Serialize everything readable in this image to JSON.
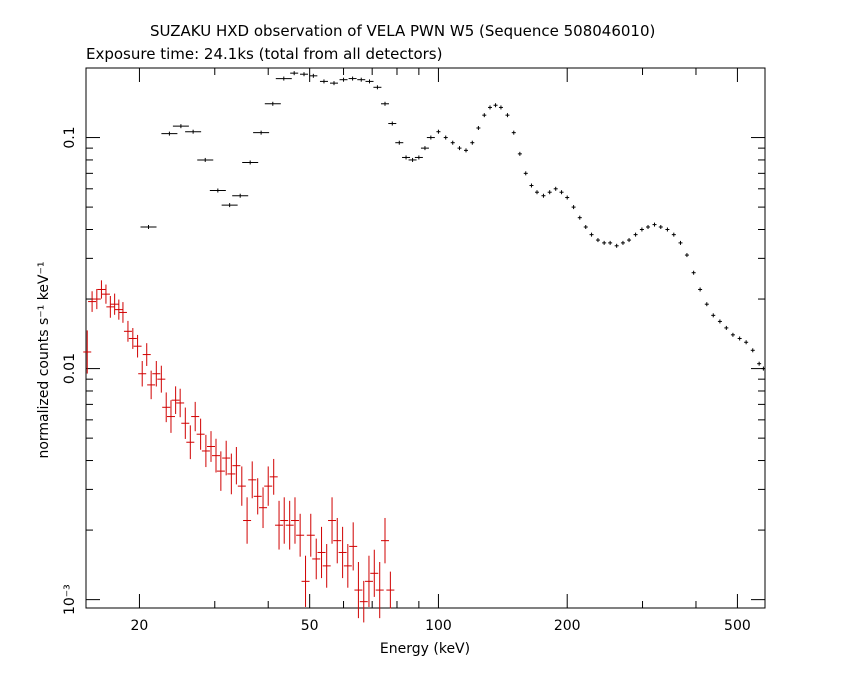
{
  "chart_data": {
    "type": "scatter",
    "title": "SUZAKU HXD observation of VELA PWN W5 (Sequence 508046010)",
    "subtitle": "Exposure time: 24.1ks (total from all detectors)",
    "xlabel": "Energy (keV)",
    "ylabel": "normalized counts s⁻¹ keV⁻¹",
    "x_scale": "log",
    "y_scale": "log",
    "xlim": [
      15,
      580
    ],
    "ylim": [
      0.00092,
      0.2
    ],
    "x_ticks": [
      20,
      50,
      100,
      200,
      500
    ],
    "y_ticks": [
      0.001,
      0.01,
      0.1
    ],
    "y_tick_labels": [
      "10⁻³",
      "0.01",
      "0.1"
    ],
    "series": [
      {
        "color": "#d00000",
        "points": [
          [
            15.1,
            0.0118,
            0.0025
          ],
          [
            15.5,
            0.0195,
            0.002
          ],
          [
            15.9,
            0.02,
            0.002
          ],
          [
            16.3,
            0.022,
            0.002
          ],
          [
            16.7,
            0.021,
            0.002
          ],
          [
            17.1,
            0.0185,
            0.002
          ],
          [
            17.5,
            0.019,
            0.002
          ],
          [
            17.9,
            0.018,
            0.0018
          ],
          [
            18.3,
            0.0175,
            0.0018
          ],
          [
            18.8,
            0.0145,
            0.0015
          ],
          [
            19.3,
            0.0135,
            0.0014
          ],
          [
            19.8,
            0.0125,
            0.0014
          ],
          [
            20.3,
            0.0095,
            0.0012
          ],
          [
            20.8,
            0.0115,
            0.0013
          ],
          [
            21.3,
            0.0085,
            0.0012
          ],
          [
            21.9,
            0.0095,
            0.0012
          ],
          [
            22.5,
            0.009,
            0.0012
          ],
          [
            23.1,
            0.0068,
            0.001
          ],
          [
            23.7,
            0.0062,
            0.001
          ],
          [
            24.3,
            0.0073,
            0.001
          ],
          [
            24.9,
            0.0071,
            0.001
          ],
          [
            25.6,
            0.0058,
            0.0009
          ],
          [
            26.3,
            0.0048,
            0.0008
          ],
          [
            27.0,
            0.0062,
            0.0009
          ],
          [
            27.8,
            0.0052,
            0.0008
          ],
          [
            28.6,
            0.0044,
            0.0007
          ],
          [
            29.4,
            0.0046,
            0.0007
          ],
          [
            30.2,
            0.0042,
            0.0007
          ],
          [
            31.0,
            0.0036,
            0.0007
          ],
          [
            31.9,
            0.0041,
            0.0007
          ],
          [
            32.8,
            0.0035,
            0.0007
          ],
          [
            33.7,
            0.0038,
            0.0007
          ],
          [
            34.7,
            0.0031,
            0.0006
          ],
          [
            35.7,
            0.0022,
            0.0005
          ],
          [
            36.7,
            0.0033,
            0.0006
          ],
          [
            37.8,
            0.0028,
            0.0005
          ],
          [
            38.9,
            0.0025,
            0.0005
          ],
          [
            40.0,
            0.0031,
            0.0006
          ],
          [
            41.2,
            0.0034,
            0.0006
          ],
          [
            42.4,
            0.0021,
            0.0005
          ],
          [
            43.6,
            0.0022,
            0.0005
          ],
          [
            44.9,
            0.0021,
            0.0005
          ],
          [
            46.2,
            0.0022,
            0.0005
          ],
          [
            47.5,
            0.0019,
            0.0004
          ],
          [
            48.9,
            0.0012,
            0.0003
          ],
          [
            50.3,
            0.0019,
            0.0004
          ],
          [
            51.8,
            0.0015,
            0.0003
          ],
          [
            53.3,
            0.0016,
            0.0004
          ],
          [
            54.8,
            0.0014,
            0.0003
          ],
          [
            56.4,
            0.0022,
            0.0005
          ],
          [
            58.0,
            0.0018,
            0.0004
          ],
          [
            59.7,
            0.0016,
            0.0004
          ],
          [
            61.4,
            0.0014,
            0.0003
          ],
          [
            63.2,
            0.0017,
            0.0004
          ],
          [
            65.0,
            0.0011,
            0.0003
          ],
          [
            66.9,
            0.00098,
            0.0002
          ],
          [
            68.8,
            0.0012,
            0.0003
          ],
          [
            70.8,
            0.0013,
            0.0003
          ],
          [
            72.9,
            0.0011,
            0.0003
          ],
          [
            75.0,
            0.0018,
            0.0004
          ],
          [
            77.2,
            0.0011,
            0.0002
          ]
        ]
      },
      {
        "color": "#000000",
        "points": [
          [
            21.0,
            0.041
          ],
          [
            23.5,
            0.104
          ],
          [
            25.0,
            0.112
          ],
          [
            26.7,
            0.106
          ],
          [
            28.5,
            0.08
          ],
          [
            30.5,
            0.059
          ],
          [
            32.5,
            0.051
          ],
          [
            34.4,
            0.056
          ],
          [
            36.3,
            0.078
          ],
          [
            38.5,
            0.105
          ],
          [
            41.0,
            0.14
          ],
          [
            43.5,
            0.18
          ],
          [
            46.0,
            0.19
          ],
          [
            48.5,
            0.188
          ],
          [
            51.0,
            0.185
          ],
          [
            54.0,
            0.175
          ],
          [
            57.0,
            0.172
          ],
          [
            60.0,
            0.178
          ],
          [
            63.0,
            0.18
          ],
          [
            66.0,
            0.178
          ],
          [
            69.0,
            0.175
          ],
          [
            72.0,
            0.165
          ],
          [
            75.0,
            0.14
          ],
          [
            78.0,
            0.115
          ],
          [
            81.0,
            0.095
          ],
          [
            84.0,
            0.082
          ],
          [
            87.0,
            0.08
          ],
          [
            90.0,
            0.082
          ],
          [
            93.0,
            0.09
          ],
          [
            96.0,
            0.1
          ],
          [
            100.0,
            0.106
          ],
          [
            104.0,
            0.1
          ],
          [
            108.0,
            0.095
          ],
          [
            112.0,
            0.09
          ],
          [
            116.0,
            0.088
          ],
          [
            120.0,
            0.095
          ],
          [
            124.0,
            0.11
          ],
          [
            128.0,
            0.125
          ],
          [
            132.0,
            0.135
          ],
          [
            136.0,
            0.138
          ],
          [
            140.0,
            0.135
          ],
          [
            145.0,
            0.125
          ],
          [
            150.0,
            0.105
          ],
          [
            155.0,
            0.085
          ],
          [
            160.0,
            0.07
          ],
          [
            165.0,
            0.062
          ],
          [
            170.0,
            0.058
          ],
          [
            176.0,
            0.056
          ],
          [
            182.0,
            0.058
          ],
          [
            188.0,
            0.06
          ],
          [
            194.0,
            0.058
          ],
          [
            200.0,
            0.055
          ],
          [
            207.0,
            0.05
          ],
          [
            214.0,
            0.045
          ],
          [
            221.0,
            0.041
          ],
          [
            228.0,
            0.038
          ],
          [
            236.0,
            0.036
          ],
          [
            244.0,
            0.035
          ],
          [
            252.0,
            0.035
          ],
          [
            261.0,
            0.034
          ],
          [
            270.0,
            0.035
          ],
          [
            279.0,
            0.036
          ],
          [
            289.0,
            0.038
          ],
          [
            299.0,
            0.04
          ],
          [
            309.0,
            0.041
          ],
          [
            320.0,
            0.042
          ],
          [
            331.0,
            0.041
          ],
          [
            343.0,
            0.04
          ],
          [
            355.0,
            0.038
          ],
          [
            368.0,
            0.035
          ],
          [
            381.0,
            0.031
          ],
          [
            395.0,
            0.026
          ],
          [
            409.0,
            0.022
          ],
          [
            424.0,
            0.019
          ],
          [
            439.0,
            0.017
          ],
          [
            455.0,
            0.016
          ],
          [
            471.0,
            0.015
          ],
          [
            488.0,
            0.014
          ],
          [
            506.0,
            0.0135
          ],
          [
            524.0,
            0.013
          ],
          [
            543.0,
            0.012
          ],
          [
            562.0,
            0.0105
          ],
          [
            575.0,
            0.01
          ]
        ]
      }
    ]
  }
}
